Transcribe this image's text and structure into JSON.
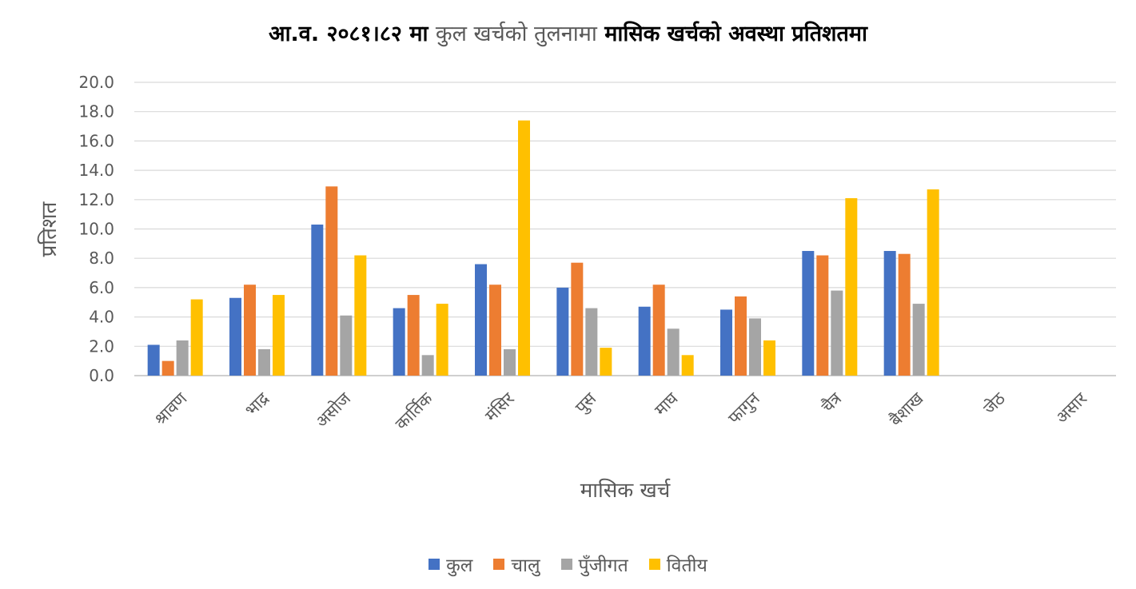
{
  "chart_data": {
    "type": "bar",
    "title_parts": [
      "आ.व. २०८१।८२ मा",
      "कुल खर्चको तुलनामा",
      "मासिक खर्चको अवस्था प्रतिशतमा"
    ],
    "xlabel": "मासिक खर्च",
    "ylabel": "प्रतिशत",
    "ylim": [
      0,
      20
    ],
    "yticks": [
      "0.0",
      "2.0",
      "4.0",
      "6.0",
      "8.0",
      "10.0",
      "12.0",
      "14.0",
      "16.0",
      "18.0",
      "20.0"
    ],
    "grid": true,
    "legend_position": "bottom",
    "categories": [
      "श्रावण",
      "भाद्र",
      "असोज",
      "कार्तिक",
      "मंसिर",
      "पुस",
      "माघ",
      "फागुन",
      "चैत्र",
      "बैशाख",
      "जेठ",
      "असार"
    ],
    "series": [
      {
        "name": "कुल",
        "color": "#4472C4",
        "values": [
          2.1,
          5.3,
          10.3,
          4.6,
          7.6,
          6.0,
          4.7,
          4.5,
          8.5,
          8.5,
          null,
          null
        ]
      },
      {
        "name": "चालु",
        "color": "#ED7D31",
        "values": [
          1.0,
          6.2,
          12.9,
          5.5,
          6.2,
          7.7,
          6.2,
          5.4,
          8.2,
          8.3,
          null,
          null
        ]
      },
      {
        "name": "पुँजीगत",
        "color": "#A5A5A5",
        "values": [
          2.4,
          1.8,
          4.1,
          1.4,
          1.8,
          4.6,
          3.2,
          3.9,
          5.8,
          4.9,
          null,
          null
        ]
      },
      {
        "name": "वितीय",
        "color": "#FFC000",
        "values": [
          5.2,
          5.5,
          8.2,
          4.9,
          17.4,
          1.9,
          1.4,
          2.4,
          12.1,
          12.7,
          null,
          null
        ]
      }
    ]
  }
}
